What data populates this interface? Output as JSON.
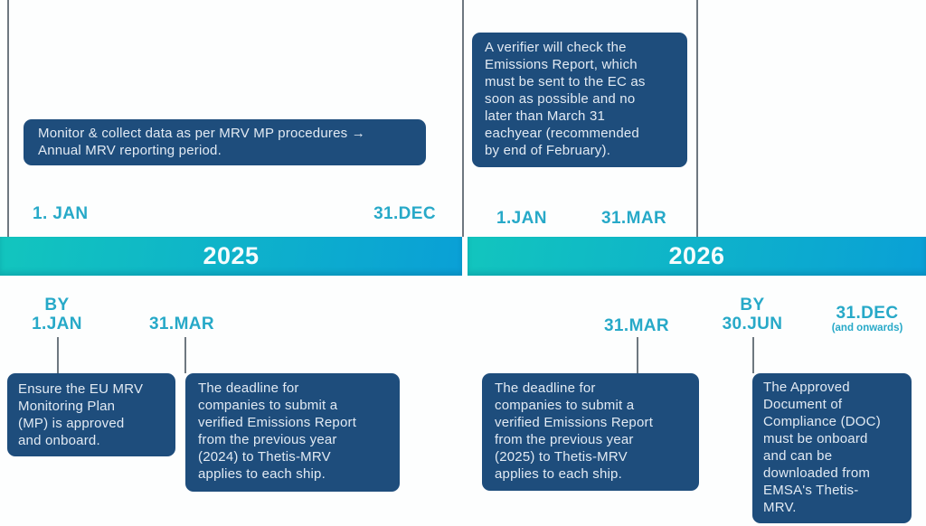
{
  "colors": {
    "box_background": "#1E4D7C",
    "box_text": "#E2EAF3",
    "accent_teal": "#27A9C8",
    "banner_gradient_start": "#12C5BE",
    "banner_gradient_end": "#0AA0D6",
    "divider_grey": "#6E7880"
  },
  "timeline_top": {
    "sections": [
      {
        "box_text": "Monitor & collect data as per MRV MP procedures →\nAnnual MRV reporting period.",
        "start_label": "1. JAN",
        "end_label": "31.DEC"
      },
      {
        "box_text": "A verifier will check the\nEmissions Report, which\nmust be sent to the EC as\nsoon as possible and no\nlater than March 31\neachyear (recommended\nby end of February).",
        "start_label": "1.JAN",
        "end_label": "31.MAR"
      }
    ]
  },
  "year_banner": {
    "years": [
      "2025",
      "2026"
    ]
  },
  "timeline_bottom": {
    "milestones": [
      {
        "prefix": "BY",
        "date": "1.JAN",
        "box_text": "Ensure the EU MRV\nMonitoring Plan\n(MP) is approved\nand onboard."
      },
      {
        "date": "31.MAR",
        "box_text": "The deadline for\ncompanies to submit a\nverified Emissions Report\nfrom the previous year\n(2024) to Thetis-MRV\napplies to each ship."
      },
      {
        "date": "31.MAR",
        "box_text": "The deadline for\ncompanies to submit a\nverified Emissions Report\nfrom the previous year\n(2025) to Thetis-MRV\napplies to each ship."
      },
      {
        "prefix": "BY",
        "date": "30.JUN",
        "box_text": "The Approved\nDocument of\nCompliance (DOC)\nmust be onboard\nand can be\ndownloaded from\nEMSA's Thetis-\nMRV."
      },
      {
        "date": "31.DEC",
        "suffix": "(and onwards)"
      }
    ]
  }
}
